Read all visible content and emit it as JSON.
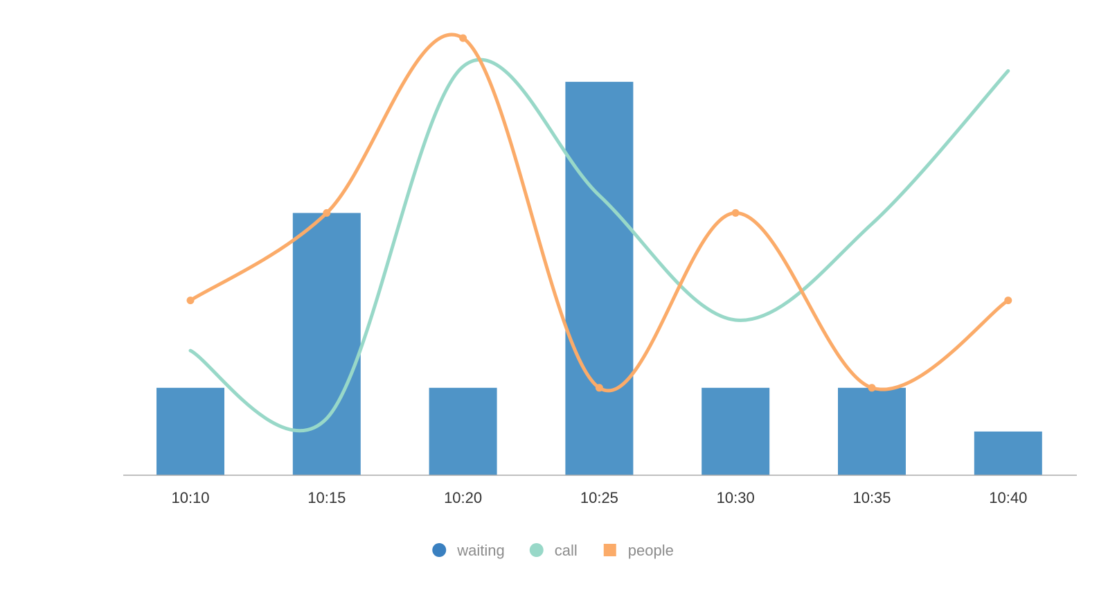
{
  "chart_data": {
    "type": "bar",
    "categories": [
      "10:10",
      "10:15",
      "10:20",
      "10:25",
      "10:30",
      "10:35",
      "10:40"
    ],
    "ylim": [
      0,
      10
    ],
    "grid": false,
    "legend_position": "bottom-center",
    "series": [
      {
        "name": "waiting",
        "type": "bar",
        "color": "#4f94c7",
        "legend_color": "#3a80c0",
        "legend_marker": "circle",
        "values": [
          2,
          6,
          2,
          9,
          2,
          2,
          1
        ]
      },
      {
        "name": "call",
        "type": "line",
        "smooth": true,
        "color": "#98d8c8",
        "legend_marker": "circle",
        "values": [
          2.85,
          1.3,
          9.35,
          6.4,
          3.55,
          5.75,
          9.25
        ]
      },
      {
        "name": "people",
        "type": "line",
        "smooth": true,
        "show_points": true,
        "color": "#fbab69",
        "legend_marker": "square",
        "values": [
          4,
          6,
          10,
          2,
          6,
          2,
          4
        ]
      }
    ]
  }
}
